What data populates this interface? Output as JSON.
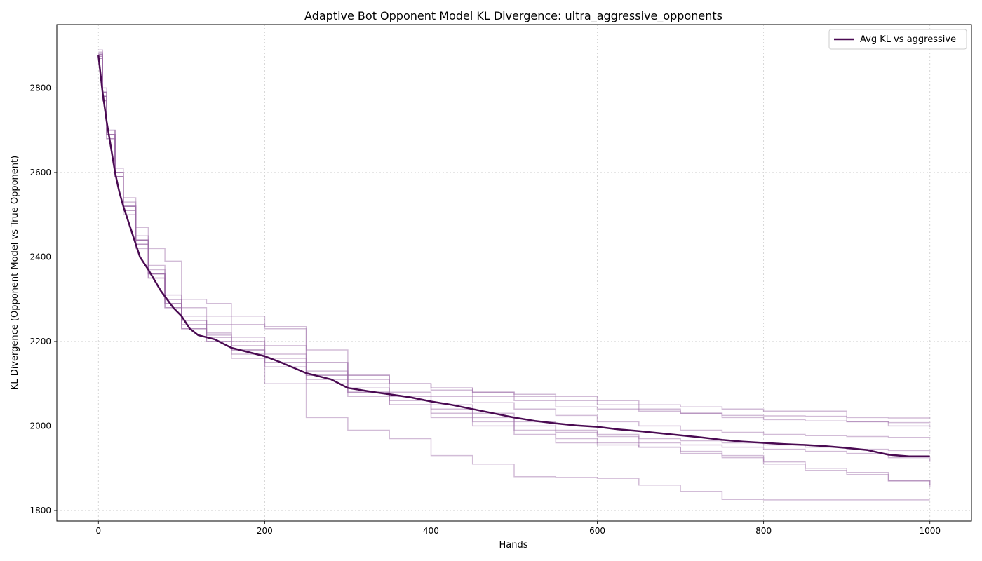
{
  "chart_data": {
    "type": "line",
    "title": "Adaptive Bot Opponent Model KL Divergence: ultra_aggressive_opponents",
    "xlabel": "Hands",
    "ylabel": "KL Divergence (Opponent Model vs True Opponent)",
    "xlim": [
      -50,
      1050
    ],
    "ylim": [
      1775,
      2950
    ],
    "xticks": [
      0,
      200,
      400,
      600,
      800,
      1000
    ],
    "yticks": [
      1800,
      2000,
      2200,
      2400,
      2600,
      2800
    ],
    "grid": true,
    "legend_position": "top-right",
    "colors": {
      "mean_line": "#4a0a52",
      "individual_runs": "#9b6aa6"
    },
    "series": [
      {
        "name": "Avg KL vs aggressive",
        "x": [
          0,
          5,
          10,
          15,
          20,
          25,
          30,
          40,
          50,
          60,
          75,
          90,
          100,
          110,
          120,
          140,
          160,
          180,
          200,
          220,
          250,
          280,
          300,
          325,
          350,
          375,
          400,
          425,
          450,
          475,
          500,
          525,
          550,
          575,
          600,
          625,
          650,
          675,
          700,
          725,
          750,
          775,
          800,
          825,
          850,
          875,
          900,
          925,
          950,
          975,
          1000
        ],
        "values": [
          2877,
          2790,
          2720,
          2660,
          2600,
          2555,
          2520,
          2460,
          2400,
          2370,
          2320,
          2280,
          2260,
          2230,
          2215,
          2205,
          2185,
          2175,
          2165,
          2150,
          2125,
          2110,
          2090,
          2082,
          2075,
          2068,
          2058,
          2050,
          2040,
          2030,
          2020,
          2012,
          2006,
          2001,
          1998,
          1992,
          1988,
          1983,
          1978,
          1973,
          1967,
          1963,
          1960,
          1957,
          1955,
          1952,
          1948,
          1943,
          1932,
          1928,
          1928
        ]
      },
      {
        "x": [
          0,
          5,
          10,
          20,
          30,
          45,
          60,
          80,
          100,
          130,
          160,
          200,
          250,
          300,
          350,
          400,
          450,
          500,
          550,
          600,
          650,
          700,
          750,
          800,
          850,
          900,
          950,
          1000
        ],
        "values": [
          2880,
          2800,
          2700,
          2600,
          2520,
          2440,
          2380,
          2300,
          2250,
          2215,
          2190,
          2170,
          2150,
          2120,
          2100,
          2085,
          2070,
          2060,
          2045,
          2040,
          2035,
          2030,
          2025,
          2024,
          2023,
          2020,
          2019,
          2018
        ]
      },
      {
        "x": [
          0,
          5,
          10,
          20,
          30,
          45,
          60,
          80,
          100,
          130,
          160,
          200,
          250,
          300,
          350,
          400,
          450,
          500,
          550,
          600,
          650,
          700,
          750,
          800,
          850,
          900,
          950,
          1000
        ],
        "values": [
          2870,
          2780,
          2700,
          2610,
          2540,
          2470,
          2420,
          2390,
          2300,
          2290,
          2260,
          2235,
          2150,
          2110,
          2100,
          2090,
          2080,
          2075,
          2070,
          2060,
          2050,
          2045,
          2040,
          2035,
          2035,
          2010,
          2008,
          2007
        ]
      },
      {
        "x": [
          0,
          5,
          10,
          20,
          30,
          45,
          60,
          80,
          100,
          130,
          160,
          200,
          250,
          300,
          350,
          400,
          450,
          500,
          550,
          600,
          650,
          700,
          750,
          800,
          850,
          900,
          950,
          1000
        ],
        "values": [
          2890,
          2790,
          2690,
          2590,
          2520,
          2450,
          2360,
          2310,
          2280,
          2260,
          2240,
          2230,
          2180,
          2120,
          2100,
          2090,
          2080,
          2070,
          2060,
          2050,
          2040,
          2030,
          2020,
          2015,
          2012,
          2010,
          2000,
          1997
        ]
      },
      {
        "x": [
          0,
          5,
          10,
          20,
          30,
          45,
          60,
          80,
          100,
          130,
          160,
          200,
          250,
          300,
          350,
          400,
          450,
          500,
          550,
          600,
          650,
          700,
          750,
          800,
          850,
          900,
          950,
          1000
        ],
        "values": [
          2875,
          2780,
          2690,
          2600,
          2530,
          2440,
          2360,
          2300,
          2260,
          2240,
          2210,
          2190,
          2130,
          2100,
          2080,
          2070,
          2055,
          2040,
          2025,
          2010,
          2000,
          1990,
          1985,
          1980,
          1977,
          1975,
          1973,
          1972
        ]
      },
      {
        "x": [
          0,
          5,
          10,
          20,
          30,
          45,
          60,
          80,
          100,
          130,
          160,
          200,
          250,
          300,
          350,
          400,
          450,
          500,
          550,
          600,
          650,
          700,
          750,
          800,
          850,
          900,
          950,
          1000
        ],
        "values": [
          2880,
          2770,
          2680,
          2590,
          2510,
          2430,
          2350,
          2280,
          2240,
          2210,
          2180,
          2150,
          2120,
          2090,
          2070,
          2050,
          2030,
          2010,
          1990,
          1980,
          1970,
          1965,
          1960,
          1955,
          1950,
          1945,
          1942,
          1940
        ]
      },
      {
        "x": [
          0,
          5,
          10,
          20,
          30,
          45,
          60,
          80,
          100,
          130,
          160,
          200,
          250,
          300,
          350,
          400,
          450,
          500,
          550,
          600,
          650,
          700,
          750,
          800,
          850,
          900,
          950,
          1000
        ],
        "values": [
          2885,
          2790,
          2700,
          2600,
          2520,
          2440,
          2370,
          2300,
          2250,
          2220,
          2200,
          2160,
          2110,
          2080,
          2060,
          2040,
          2020,
          2000,
          1985,
          1975,
          1960,
          1955,
          1950,
          1945,
          1940,
          1935,
          1925,
          1915
        ]
      },
      {
        "x": [
          0,
          5,
          10,
          20,
          30,
          45,
          60,
          80,
          100,
          130,
          160,
          200,
          250,
          300,
          350,
          400,
          450,
          500,
          550,
          600,
          650,
          700,
          750,
          800,
          850,
          900,
          950,
          1000
        ],
        "values": [
          2870,
          2770,
          2680,
          2590,
          2510,
          2430,
          2360,
          2290,
          2230,
          2200,
          2170,
          2140,
          2100,
          2070,
          2050,
          2030,
          2010,
          1990,
          1970,
          1960,
          1950,
          1935,
          1925,
          1910,
          1900,
          1890,
          1870,
          1860
        ]
      },
      {
        "x": [
          0,
          5,
          10,
          20,
          30,
          45,
          60,
          80,
          100,
          130,
          160,
          200,
          250,
          300,
          350,
          400,
          450,
          500,
          550,
          600,
          650,
          700,
          750,
          800,
          850,
          900,
          950,
          1000
        ],
        "values": [
          2875,
          2780,
          2690,
          2600,
          2520,
          2440,
          2360,
          2290,
          2250,
          2210,
          2180,
          2150,
          2120,
          2080,
          2050,
          2020,
          2000,
          1980,
          1960,
          1955,
          1950,
          1940,
          1930,
          1915,
          1895,
          1885,
          1870,
          1855
        ]
      },
      {
        "x": [
          0,
          5,
          10,
          20,
          30,
          45,
          60,
          80,
          100,
          130,
          160,
          200,
          250,
          300,
          350,
          400,
          450,
          500,
          550,
          600,
          650,
          700,
          750,
          800,
          850,
          900,
          950,
          1000
        ],
        "values": [
          2880,
          2790,
          2690,
          2590,
          2500,
          2420,
          2350,
          2280,
          2230,
          2200,
          2160,
          2100,
          2020,
          1990,
          1970,
          1930,
          1910,
          1880,
          1878,
          1876,
          1860,
          1845,
          1826,
          1825,
          1825,
          1825,
          1825,
          1825
        ]
      }
    ]
  }
}
